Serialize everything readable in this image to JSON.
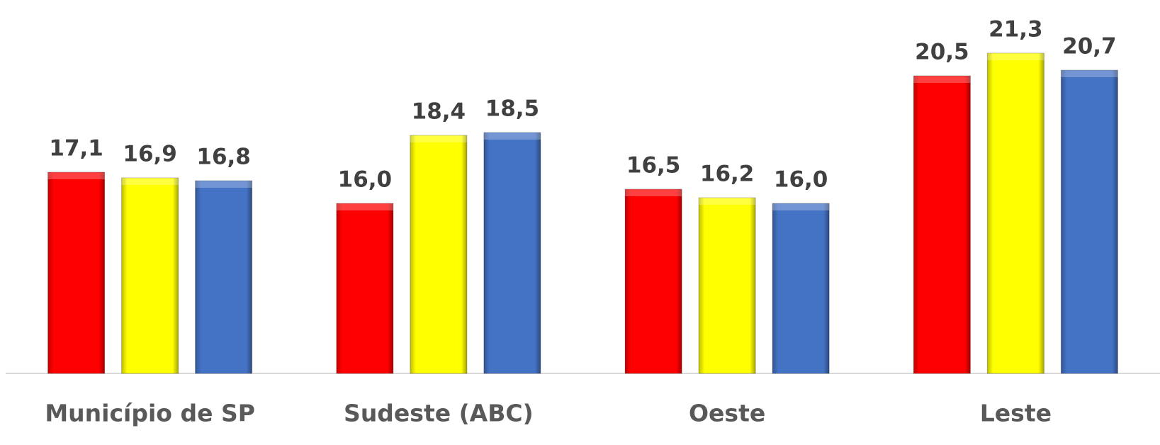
{
  "chart_data": {
    "type": "bar",
    "categories": [
      "Município de SP",
      "Sudeste (ABC)",
      "Oeste",
      "Leste"
    ],
    "series": [
      {
        "color": "#ff0000",
        "values": [
          17.1,
          16.0,
          16.5,
          20.5
        ],
        "value_labels": [
          "17,1",
          "16,0",
          "16,5",
          "20,5"
        ]
      },
      {
        "color": "#ffff00",
        "values": [
          16.9,
          18.4,
          16.2,
          21.3
        ],
        "value_labels": [
          "16,9",
          "18,4",
          "16,2",
          "21,3"
        ]
      },
      {
        "color": "#4472c4",
        "values": [
          16.8,
          18.5,
          16.0,
          20.7
        ],
        "value_labels": [
          "16,8",
          "18,5",
          "16,0",
          "20,7"
        ]
      }
    ],
    "ylim": [
      10,
      22.5
    ]
  }
}
